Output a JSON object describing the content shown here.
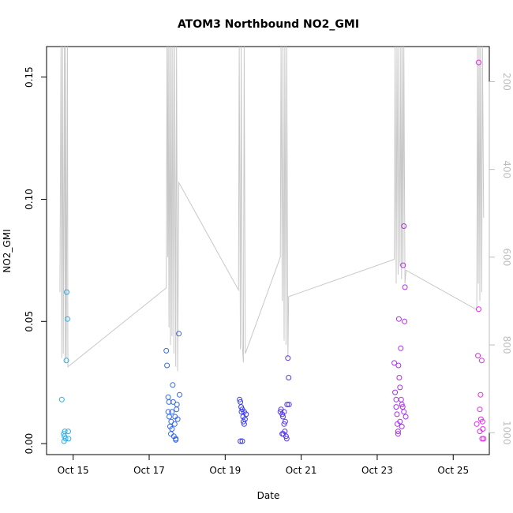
{
  "chart_data": {
    "type": "scatter",
    "title": "ATOM3 Northbound NO2_GMI",
    "xlabel": "Date",
    "ylabel": "NO2_GMI",
    "xlim": [
      14.3,
      25.95
    ],
    "ylim": [
      -0.0045,
      0.1625
    ],
    "x_ticks": [
      {
        "value": 15,
        "label": "Oct 15"
      },
      {
        "value": 17,
        "label": "Oct 17"
      },
      {
        "value": 19,
        "label": "Oct 19"
      },
      {
        "value": 21,
        "label": "Oct 21"
      },
      {
        "value": 23,
        "label": "Oct 23"
      },
      {
        "value": 25,
        "label": "Oct 25"
      }
    ],
    "y_ticks": [
      0.0,
      0.05,
      0.1,
      0.15
    ],
    "y_tick_labels": [
      "0.00",
      "0.05",
      "0.10",
      "0.15"
    ],
    "y2_lim": [
      120,
      1050
    ],
    "y2_reversed": true,
    "y2_ticks": [
      200,
      400,
      600,
      800,
      1000
    ],
    "y2_tick_labels": [
      "200",
      "400",
      "600",
      "800",
      "1000"
    ],
    "y2_line_color": "#c8c8c8",
    "point_colors": {
      "start": "#2ab3e8",
      "mid": "#3a3ae8",
      "end": "#ea2aea"
    },
    "points": [
      {
        "x": 14.7,
        "y": 0.018
      },
      {
        "x": 14.75,
        "y": 0.004
      },
      {
        "x": 14.77,
        "y": 0.003
      },
      {
        "x": 14.78,
        "y": 0.005
      },
      {
        "x": 14.8,
        "y": 0.002
      },
      {
        "x": 14.82,
        "y": 0.034
      },
      {
        "x": 14.83,
        "y": 0.062
      },
      {
        "x": 14.85,
        "y": 0.051
      },
      {
        "x": 14.87,
        "y": 0.005
      },
      {
        "x": 14.88,
        "y": 0.002
      },
      {
        "x": 14.76,
        "y": 0.001
      },
      {
        "x": 17.45,
        "y": 0.038
      },
      {
        "x": 17.47,
        "y": 0.032
      },
      {
        "x": 17.5,
        "y": 0.019
      },
      {
        "x": 17.5,
        "y": 0.013
      },
      {
        "x": 17.52,
        "y": 0.017
      },
      {
        "x": 17.53,
        "y": 0.011
      },
      {
        "x": 17.55,
        "y": 0.007
      },
      {
        "x": 17.57,
        "y": 0.004
      },
      {
        "x": 17.58,
        "y": 0.009
      },
      {
        "x": 17.6,
        "y": 0.013
      },
      {
        "x": 17.62,
        "y": 0.024
      },
      {
        "x": 17.63,
        "y": 0.017
      },
      {
        "x": 17.65,
        "y": 0.003
      },
      {
        "x": 17.67,
        "y": 0.008
      },
      {
        "x": 17.68,
        "y": 0.011
      },
      {
        "x": 17.7,
        "y": 0.002
      },
      {
        "x": 17.72,
        "y": 0.014
      },
      {
        "x": 17.73,
        "y": 0.016
      },
      {
        "x": 17.75,
        "y": 0.01
      },
      {
        "x": 17.78,
        "y": 0.045
      },
      {
        "x": 17.8,
        "y": 0.02
      },
      {
        "x": 17.6,
        "y": 0.006
      },
      {
        "x": 17.7,
        "y": 0.0015
      },
      {
        "x": 19.38,
        "y": 0.018
      },
      {
        "x": 19.4,
        "y": 0.017
      },
      {
        "x": 19.42,
        "y": 0.015
      },
      {
        "x": 19.43,
        "y": 0.013
      },
      {
        "x": 19.45,
        "y": 0.014
      },
      {
        "x": 19.47,
        "y": 0.011
      },
      {
        "x": 19.48,
        "y": 0.009
      },
      {
        "x": 19.5,
        "y": 0.013
      },
      {
        "x": 19.52,
        "y": 0.01
      },
      {
        "x": 19.55,
        "y": 0.012
      },
      {
        "x": 19.4,
        "y": 0.001
      },
      {
        "x": 19.45,
        "y": 0.001
      },
      {
        "x": 19.5,
        "y": 0.008
      },
      {
        "x": 20.45,
        "y": 0.013
      },
      {
        "x": 20.47,
        "y": 0.014
      },
      {
        "x": 20.5,
        "y": 0.012
      },
      {
        "x": 20.52,
        "y": 0.011
      },
      {
        "x": 20.53,
        "y": 0.004
      },
      {
        "x": 20.55,
        "y": 0.013
      },
      {
        "x": 20.57,
        "y": 0.005
      },
      {
        "x": 20.58,
        "y": 0.009
      },
      {
        "x": 20.6,
        "y": 0.003
      },
      {
        "x": 20.62,
        "y": 0.002
      },
      {
        "x": 20.63,
        "y": 0.016
      },
      {
        "x": 20.65,
        "y": 0.035
      },
      {
        "x": 20.67,
        "y": 0.027
      },
      {
        "x": 20.68,
        "y": 0.016
      },
      {
        "x": 20.5,
        "y": 0.004
      },
      {
        "x": 20.55,
        "y": 0.008
      },
      {
        "x": 23.45,
        "y": 0.033
      },
      {
        "x": 23.47,
        "y": 0.021
      },
      {
        "x": 23.5,
        "y": 0.018
      },
      {
        "x": 23.5,
        "y": 0.015
      },
      {
        "x": 23.52,
        "y": 0.012
      },
      {
        "x": 23.53,
        "y": 0.008
      },
      {
        "x": 23.55,
        "y": 0.005
      },
      {
        "x": 23.56,
        "y": 0.032
      },
      {
        "x": 23.57,
        "y": 0.051
      },
      {
        "x": 23.58,
        "y": 0.027
      },
      {
        "x": 23.6,
        "y": 0.023
      },
      {
        "x": 23.62,
        "y": 0.039
      },
      {
        "x": 23.63,
        "y": 0.018
      },
      {
        "x": 23.65,
        "y": 0.016
      },
      {
        "x": 23.67,
        "y": 0.015
      },
      {
        "x": 23.68,
        "y": 0.073
      },
      {
        "x": 23.7,
        "y": 0.089
      },
      {
        "x": 23.72,
        "y": 0.05
      },
      {
        "x": 23.73,
        "y": 0.064
      },
      {
        "x": 23.75,
        "y": 0.011
      },
      {
        "x": 23.6,
        "y": 0.009
      },
      {
        "x": 23.65,
        "y": 0.007
      },
      {
        "x": 23.55,
        "y": 0.004
      },
      {
        "x": 23.7,
        "y": 0.013
      },
      {
        "x": 25.62,
        "y": 0.008
      },
      {
        "x": 25.65,
        "y": 0.036
      },
      {
        "x": 25.67,
        "y": 0.055
      },
      {
        "x": 25.67,
        "y": 0.156
      },
      {
        "x": 25.7,
        "y": 0.014
      },
      {
        "x": 25.72,
        "y": 0.02
      },
      {
        "x": 25.73,
        "y": 0.01
      },
      {
        "x": 25.75,
        "y": 0.034
      },
      {
        "x": 25.77,
        "y": 0.009
      },
      {
        "x": 25.78,
        "y": 0.006
      },
      {
        "x": 25.8,
        "y": 0.002
      },
      {
        "x": 25.7,
        "y": 0.005
      },
      {
        "x": 25.76,
        "y": 0.002
      }
    ],
    "pressure_line": [
      {
        "x": 14.65,
        "y2": 680
      },
      {
        "x": 14.68,
        "y2": 120
      },
      {
        "x": 14.7,
        "y2": 830
      },
      {
        "x": 14.72,
        "y2": 120
      },
      {
        "x": 14.74,
        "y2": 820
      },
      {
        "x": 14.77,
        "y2": 120
      },
      {
        "x": 14.79,
        "y2": 840
      },
      {
        "x": 14.8,
        "y2": 120
      },
      {
        "x": 14.82,
        "y2": 830
      },
      {
        "x": 14.85,
        "y2": 120
      },
      {
        "x": 14.86,
        "y2": 850
      },
      {
        "x": 17.45,
        "y2": 670
      },
      {
        "x": 17.47,
        "y2": 120
      },
      {
        "x": 17.49,
        "y2": 600
      },
      {
        "x": 17.5,
        "y2": 120
      },
      {
        "x": 17.52,
        "y2": 760
      },
      {
        "x": 17.54,
        "y2": 120
      },
      {
        "x": 17.56,
        "y2": 800
      },
      {
        "x": 17.58,
        "y2": 120
      },
      {
        "x": 17.6,
        "y2": 780
      },
      {
        "x": 17.62,
        "y2": 120
      },
      {
        "x": 17.65,
        "y2": 820
      },
      {
        "x": 17.67,
        "y2": 120
      },
      {
        "x": 17.7,
        "y2": 850
      },
      {
        "x": 17.72,
        "y2": 120
      },
      {
        "x": 17.75,
        "y2": 860
      },
      {
        "x": 17.78,
        "y2": 430
      },
      {
        "x": 19.35,
        "y2": 675
      },
      {
        "x": 19.37,
        "y2": 120
      },
      {
        "x": 19.4,
        "y2": 810
      },
      {
        "x": 19.42,
        "y2": 120
      },
      {
        "x": 19.45,
        "y2": 800
      },
      {
        "x": 19.48,
        "y2": 840
      },
      {
        "x": 19.5,
        "y2": 120
      },
      {
        "x": 19.53,
        "y2": 820
      },
      {
        "x": 20.45,
        "y2": 600
      },
      {
        "x": 20.47,
        "y2": 120
      },
      {
        "x": 20.5,
        "y2": 700
      },
      {
        "x": 20.52,
        "y2": 120
      },
      {
        "x": 20.55,
        "y2": 790
      },
      {
        "x": 20.57,
        "y2": 120
      },
      {
        "x": 20.6,
        "y2": 800
      },
      {
        "x": 20.62,
        "y2": 120
      },
      {
        "x": 20.65,
        "y2": 830
      },
      {
        "x": 20.67,
        "y2": 690
      },
      {
        "x": 23.45,
        "y2": 605
      },
      {
        "x": 23.47,
        "y2": 120
      },
      {
        "x": 23.5,
        "y2": 660
      },
      {
        "x": 23.52,
        "y2": 120
      },
      {
        "x": 23.55,
        "y2": 640
      },
      {
        "x": 23.57,
        "y2": 120
      },
      {
        "x": 23.6,
        "y2": 620
      },
      {
        "x": 23.62,
        "y2": 120
      },
      {
        "x": 23.64,
        "y2": 650
      },
      {
        "x": 23.66,
        "y2": 120
      },
      {
        "x": 23.68,
        "y2": 620
      },
      {
        "x": 23.7,
        "y2": 120
      },
      {
        "x": 23.73,
        "y2": 660
      },
      {
        "x": 23.76,
        "y2": 630
      },
      {
        "x": 25.62,
        "y2": 720
      },
      {
        "x": 25.64,
        "y2": 120
      },
      {
        "x": 25.66,
        "y2": 660
      },
      {
        "x": 25.68,
        "y2": 120
      },
      {
        "x": 25.7,
        "y2": 700
      },
      {
        "x": 25.72,
        "y2": 120
      },
      {
        "x": 25.75,
        "y2": 680
      },
      {
        "x": 25.77,
        "y2": 120
      },
      {
        "x": 25.8,
        "y2": 510
      }
    ]
  }
}
